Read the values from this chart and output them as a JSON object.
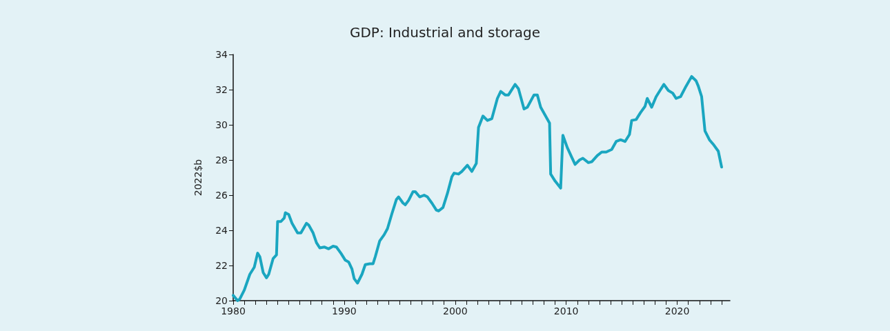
{
  "chart_data": {
    "type": "line",
    "title": "GDP: Industrial and storage",
    "ylabel": "2022$b",
    "marker": "none",
    "line_style": "solid",
    "xlim": [
      1980,
      2024.75
    ],
    "xticks": [
      1980,
      {
        "value": 1981,
        "label": null
      },
      {
        "value": 1982,
        "label": null
      },
      {
        "value": 1983,
        "label": null
      },
      {
        "value": 1984,
        "label": null
      },
      {
        "value": 1985,
        "label": null
      },
      {
        "value": 1986,
        "label": null
      },
      {
        "value": 1987,
        "label": null
      },
      {
        "value": 1988,
        "label": null
      },
      {
        "value": 1989,
        "label": null
      },
      1990,
      {
        "value": 1991,
        "label": null
      },
      {
        "value": 1992,
        "label": null
      },
      {
        "value": 1993,
        "label": null
      },
      {
        "value": 1994,
        "label": null
      },
      {
        "value": 1995,
        "label": null
      },
      {
        "value": 1996,
        "label": null
      },
      {
        "value": 1997,
        "label": null
      },
      {
        "value": 1998,
        "label": null
      },
      {
        "value": 1999,
        "label": null
      },
      2000,
      {
        "value": 2001,
        "label": null
      },
      {
        "value": 2002,
        "label": null
      },
      {
        "value": 2003,
        "label": null
      },
      {
        "value": 2004,
        "label": null
      },
      {
        "value": 2005,
        "label": null
      },
      {
        "value": 2006,
        "label": null
      },
      {
        "value": 2007,
        "label": null
      },
      {
        "value": 2008,
        "label": null
      },
      {
        "value": 2009,
        "label": null
      },
      2010,
      {
        "value": 2011,
        "label": null
      },
      {
        "value": 2012,
        "label": null
      },
      {
        "value": 2013,
        "label": null
      },
      {
        "value": 2014,
        "label": null
      },
      {
        "value": 2015,
        "label": null
      },
      {
        "value": 2016,
        "label": null
      },
      {
        "value": 2017,
        "label": null
      },
      {
        "value": 2018,
        "label": null
      },
      {
        "value": 2019,
        "label": null
      },
      2020,
      {
        "value": 2021,
        "label": null
      },
      {
        "value": 2022,
        "label": null
      },
      {
        "value": 2023,
        "label": null
      },
      {
        "value": 2024,
        "label": null
      }
    ],
    "ylim": [
      20,
      34
    ],
    "yticks": [
      20,
      22,
      24,
      26,
      28,
      30,
      32,
      34
    ],
    "series": [
      {
        "color": "#1aa6c0",
        "x": [
          1980,
          1980.4,
          1980.6,
          1981,
          1981.5,
          1981.9,
          1982.2,
          1982.4,
          1982.7,
          1983,
          1983.2,
          1983.6,
          1983.9,
          1984,
          1984.3,
          1984.6,
          1984.7,
          1985,
          1985.3,
          1985.8,
          1986.1,
          1986.6,
          1986.8,
          1987.2,
          1987.5,
          1987.8,
          1988.2,
          1988.6,
          1989,
          1989.3,
          1989.7,
          1990.1,
          1990.4,
          1990.7,
          1990.9,
          1991.2,
          1991.6,
          1991.9,
          1992.3,
          1992.6,
          1992.8,
          1993.2,
          1993.6,
          1993.9,
          1994.3,
          1994.7,
          1994.9,
          1995.3,
          1995.5,
          1995.8,
          1996.2,
          1996.4,
          1996.8,
          1997.2,
          1997.5,
          1997.9,
          1998.3,
          1998.5,
          1998.9,
          1999.3,
          1999.7,
          1999.9,
          2000.3,
          2000.6,
          2001.1,
          2001.5,
          2001.9,
          2002.1,
          2002.5,
          2002.9,
          2003.3,
          2003.8,
          2004.1,
          2004.5,
          2004.8,
          2005.4,
          2005.7,
          2006.2,
          2006.5,
          2007.1,
          2007.4,
          2007.7,
          2008.5,
          2008.6,
          2009,
          2009.5,
          2009.7,
          2010.1,
          2010.5,
          2010.8,
          2011.2,
          2011.5,
          2012,
          2012.3,
          2012.8,
          2013.2,
          2013.6,
          2014.1,
          2014.5,
          2014.9,
          2015.3,
          2015.7,
          2015.9,
          2016.3,
          2016.7,
          2017.1,
          2017.3,
          2017.7,
          2018.1,
          2018.4,
          2018.8,
          2019.2,
          2019.6,
          2019.9,
          2020.3,
          2020.8,
          2021.3,
          2021.7,
          2021.9,
          2022.2,
          2022.5,
          2022.9,
          2023.3,
          2023.7,
          2024
        ],
        "values": [
          20.3,
          20,
          20.1,
          20.6,
          21.5,
          21.9,
          22.7,
          22.5,
          21.6,
          21.3,
          21.5,
          22.4,
          22.6,
          24.5,
          24.5,
          24.7,
          25,
          24.9,
          24.4,
          23.85,
          23.85,
          24.4,
          24.3,
          23.85,
          23.3,
          23,
          23.05,
          22.95,
          23.1,
          23.05,
          22.7,
          22.3,
          22.2,
          21.8,
          21.25,
          21,
          21.5,
          22.05,
          22.1,
          22.1,
          22.5,
          23.4,
          23.75,
          24.1,
          24.95,
          25.75,
          25.9,
          25.55,
          25.45,
          25.7,
          26.2,
          26.2,
          25.9,
          26,
          25.9,
          25.55,
          25.15,
          25.1,
          25.3,
          26.1,
          27.05,
          27.25,
          27.2,
          27.35,
          27.7,
          27.35,
          27.8,
          29.85,
          30.5,
          30.25,
          30.35,
          31.5,
          31.9,
          31.7,
          31.7,
          32.3,
          32.05,
          30.9,
          31,
          31.7,
          31.7,
          31,
          30.1,
          27.2,
          26.8,
          26.4,
          29.4,
          28.7,
          28.15,
          27.75,
          28,
          28.1,
          27.85,
          27.9,
          28.25,
          28.45,
          28.45,
          28.6,
          29.05,
          29.15,
          29.05,
          29.45,
          30.25,
          30.3,
          30.7,
          31.05,
          31.5,
          31,
          31.6,
          31.9,
          32.3,
          31.95,
          31.8,
          31.5,
          31.6,
          32.2,
          32.75,
          32.5,
          32.2,
          31.6,
          29.65,
          29.15,
          28.85,
          28.5,
          27.6
        ]
      }
    ]
  }
}
